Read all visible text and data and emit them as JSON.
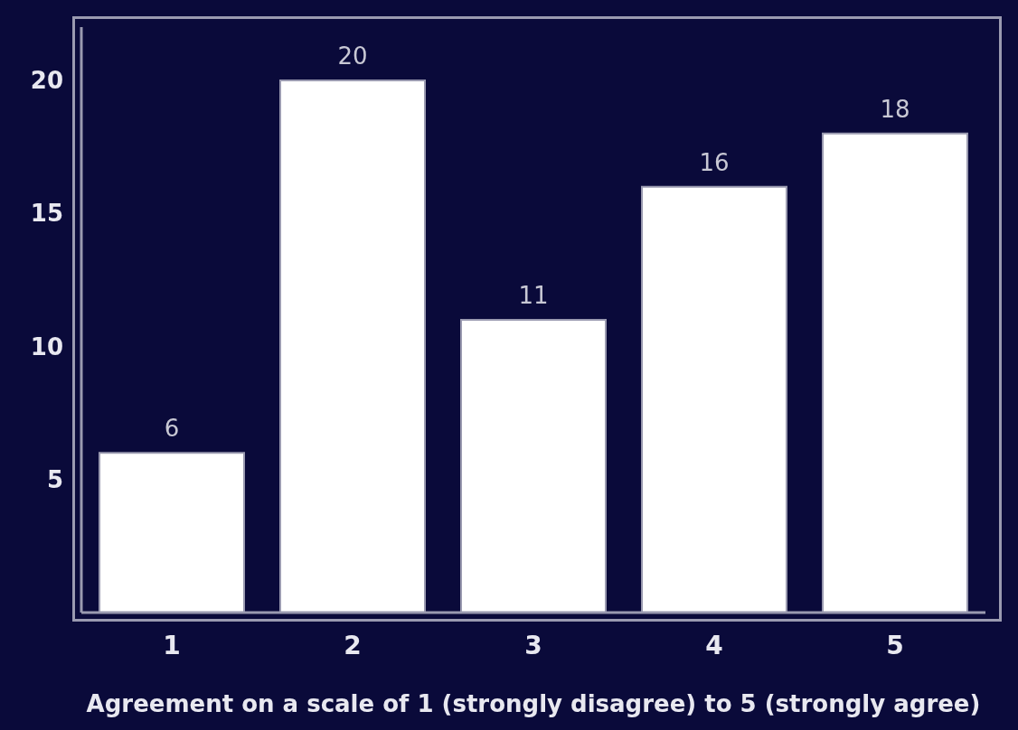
{
  "chart_data": {
    "type": "bar",
    "xlabel": "Agreement on a scale of 1 (strongly disagree) to 5 (strongly agree)",
    "categories": [
      "1",
      "2",
      "3",
      "4",
      "5"
    ],
    "values": [
      6,
      20,
      11,
      16,
      18
    ],
    "color": "#ffffff",
    "ylim": [
      0,
      22
    ],
    "yticks": [
      5,
      10,
      15,
      20
    ],
    "data_labels": true,
    "grid": false
  }
}
